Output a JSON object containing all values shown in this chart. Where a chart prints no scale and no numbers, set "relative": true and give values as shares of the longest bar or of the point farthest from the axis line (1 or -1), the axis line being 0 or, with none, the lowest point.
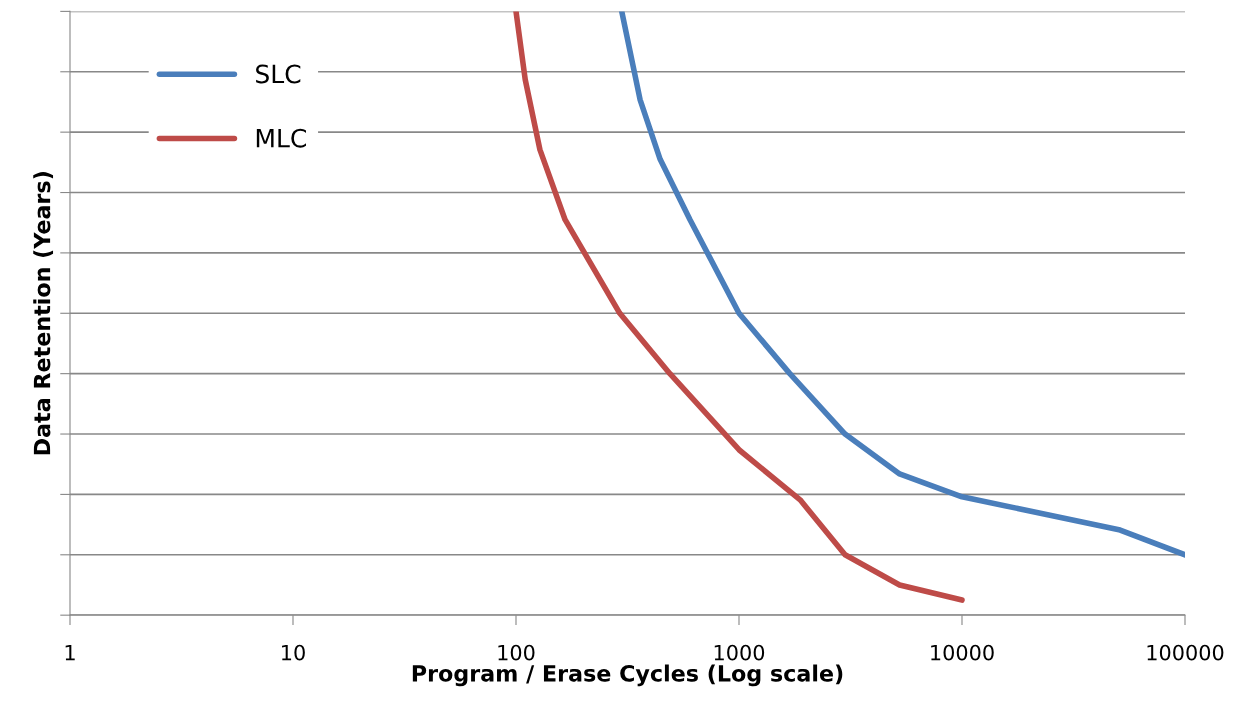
{
  "chart_data": {
    "type": "line",
    "xlabel": "Program / Erase Cycles (Log scale)",
    "ylabel": "Data Retention (Years)",
    "relative": true,
    "log": "x",
    "xlim": [
      1,
      100000
    ],
    "xticks": [
      1,
      10,
      100,
      1000,
      10000,
      100000
    ],
    "tick_labels": "x",
    "grid": "y",
    "legend": "top left",
    "marker": "none",
    "line_style": "solid",
    "series": [
      {
        "name": "SLC",
        "color": "#4a7ebb",
        "x": [
          298,
          360,
          443,
          603,
          1000,
          1690,
          2990,
          5250,
          10000,
          24500,
          51200,
          100000
        ],
        "values": [
          1.0,
          0.854,
          0.755,
          0.655,
          0.5,
          0.4,
          0.3,
          0.234,
          0.196,
          0.166,
          0.141,
          0.1
        ]
      },
      {
        "name": "MLC",
        "color": "#be4b48",
        "x": [
          100,
          110,
          128,
          166,
          292,
          490,
          1000,
          1880,
          2990,
          5250,
          10000
        ],
        "values": [
          1.0,
          0.887,
          0.771,
          0.655,
          0.5,
          0.4,
          0.274,
          0.191,
          0.1,
          0.05,
          0.025
        ]
      }
    ]
  }
}
